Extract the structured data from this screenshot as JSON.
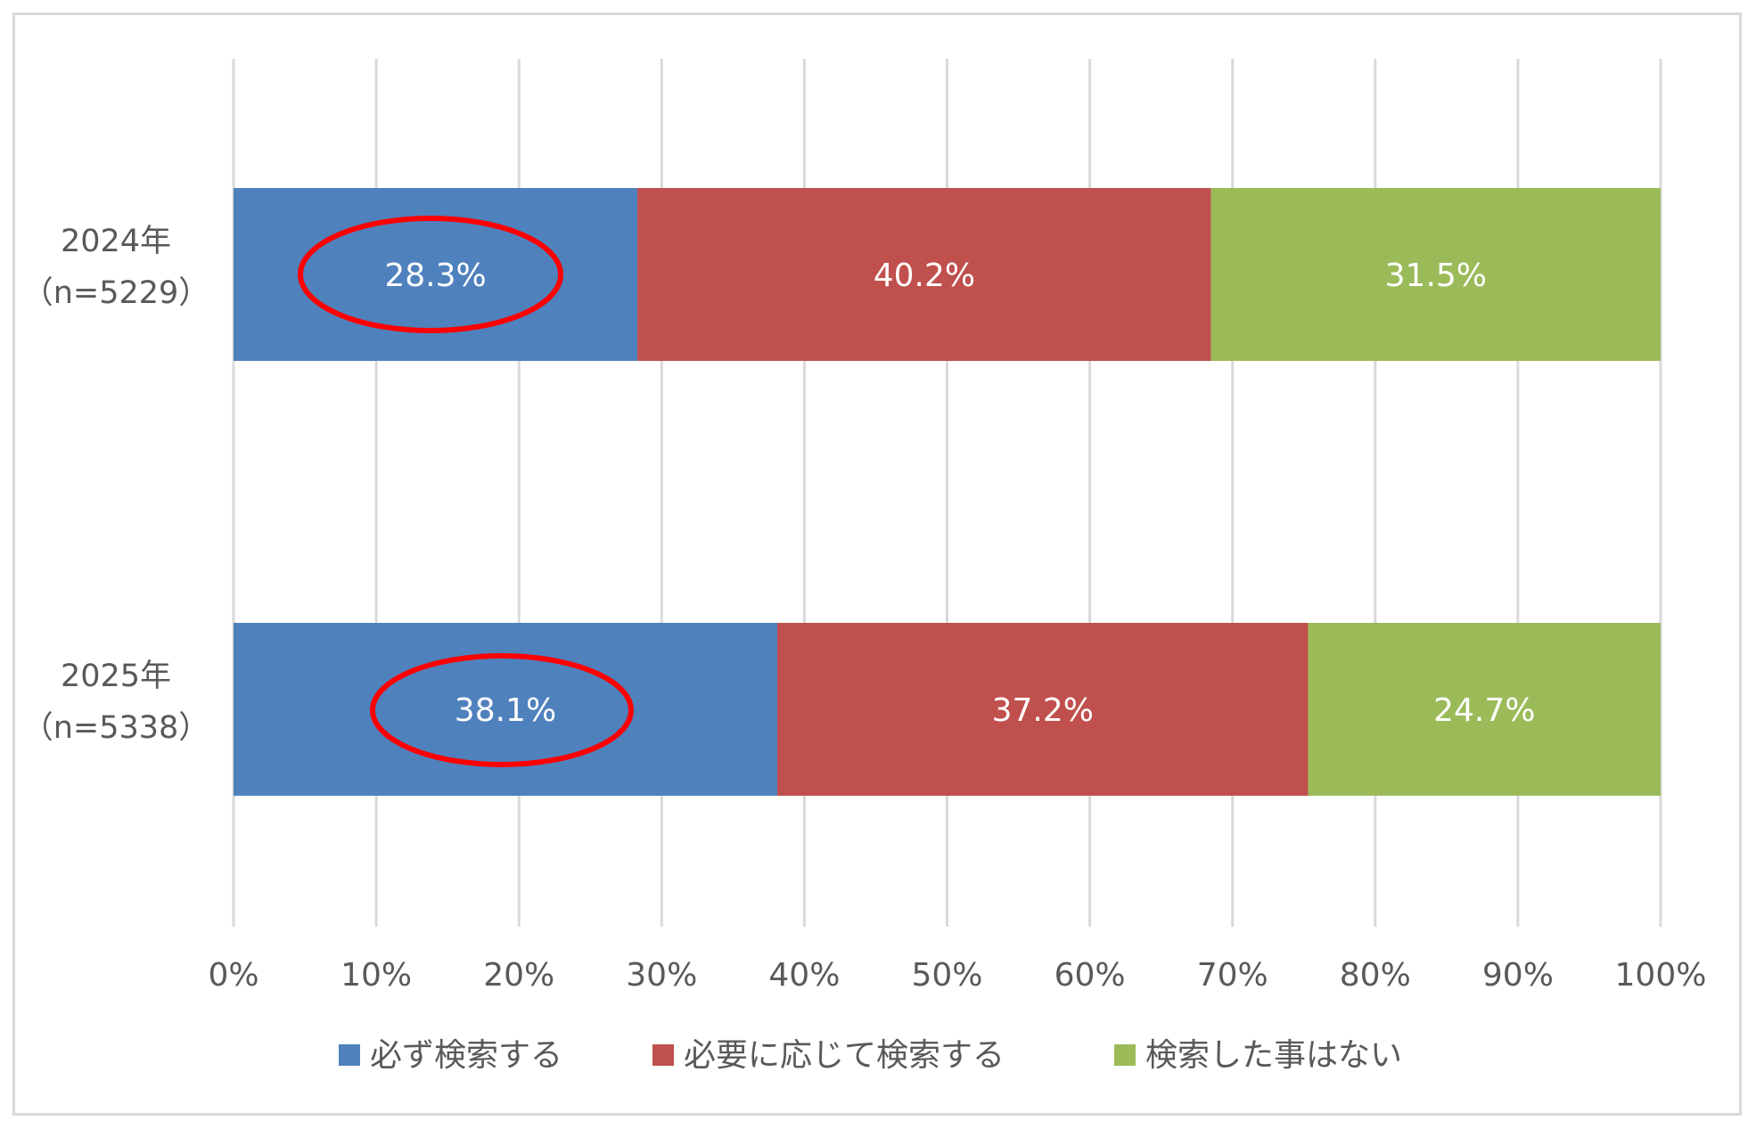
{
  "chart_data": {
    "type": "bar",
    "orientation": "horizontal",
    "stacked": "percent",
    "categories": [
      {
        "line1": "2024年",
        "line2": "（n=5229）"
      },
      {
        "line1": "2025年",
        "line2": "（n=5338）"
      }
    ],
    "series": [
      {
        "name": "必ず検索する",
        "color": "#4f81bd",
        "values": [
          28.3,
          38.1
        ],
        "labels": [
          "28.3%",
          "38.1%"
        ]
      },
      {
        "name": "必要に応じて検索する",
        "color": "#c0504d",
        "values": [
          40.2,
          37.2
        ],
        "labels": [
          "40.2%",
          "37.2%"
        ]
      },
      {
        "name": "検索した事はない",
        "color": "#9bbb59",
        "values": [
          31.5,
          24.7
        ],
        "labels": [
          "31.5%",
          "24.7%"
        ]
      }
    ],
    "xlim": [
      0,
      100
    ],
    "xticks": [
      "0%",
      "10%",
      "20%",
      "30%",
      "40%",
      "50%",
      "60%",
      "70%",
      "80%",
      "90%",
      "100%"
    ],
    "grid": "vertical",
    "legend_position": "bottom",
    "annotations": [
      {
        "type": "ellipse",
        "color": "#ff0000",
        "target": "必ず検索する / 2024年"
      },
      {
        "type": "ellipse",
        "color": "#ff0000",
        "target": "必ず検索する / 2025年"
      }
    ]
  }
}
